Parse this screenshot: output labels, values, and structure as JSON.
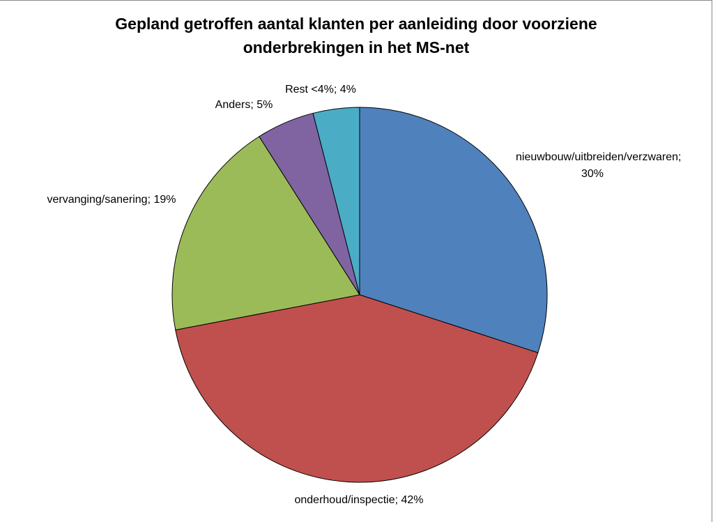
{
  "chart_data": {
    "type": "pie",
    "title": "Gepland getroffen aantal klanten per aanleiding door voorziene onderbrekingen in het MS-net",
    "values": [
      30,
      42,
      19,
      5,
      4
    ],
    "value_labels": [
      "nieuwbouw/uitbreiden/verzwaren; 30%",
      "onderhoud/inspectie; 42%",
      "vervanging/sanering; 19%",
      "Anders; 5%",
      "Rest <4%; 4%"
    ],
    "colors": [
      "#4f81bd",
      "#c0504d",
      "#9bbb59",
      "#8064a2",
      "#4bacc6"
    ]
  }
}
